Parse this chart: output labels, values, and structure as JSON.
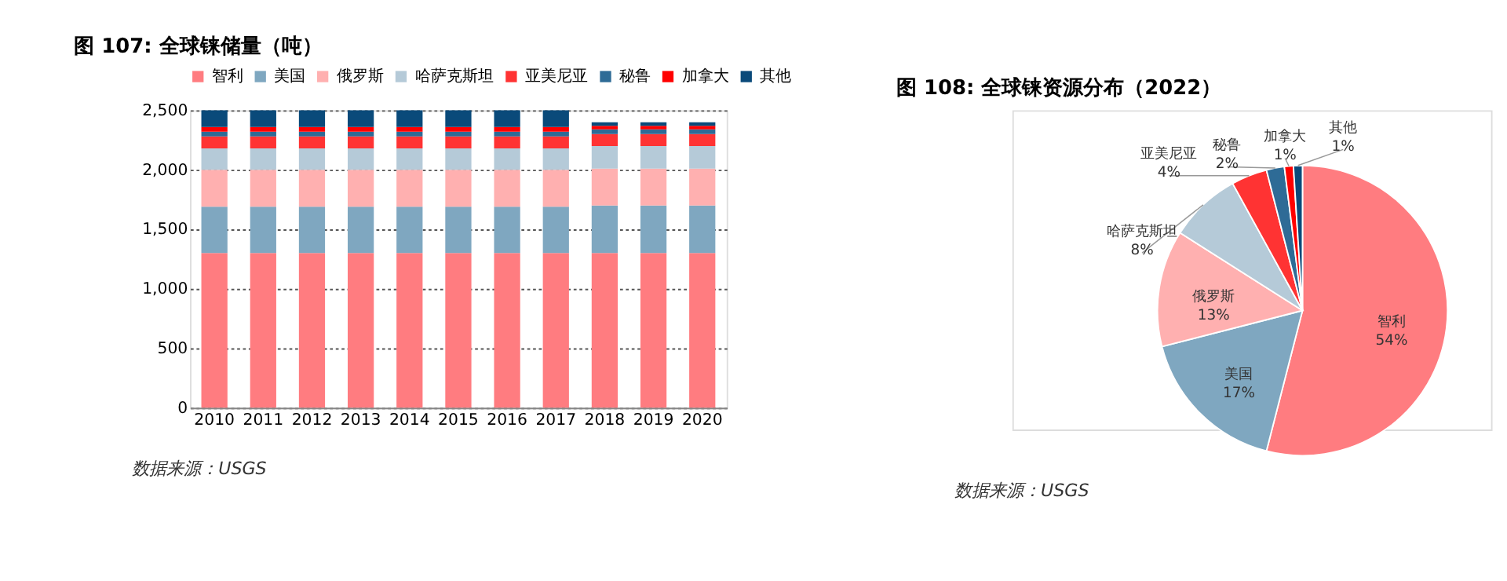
{
  "chart_data": [
    {
      "type": "bar",
      "title": "图 107: 全球铼储量（吨）",
      "stacked": true,
      "legend": "top",
      "grid": "y",
      "categories": [
        "2010",
        "2011",
        "2012",
        "2013",
        "2014",
        "2015",
        "2016",
        "2017",
        "2018",
        "2019",
        "2020"
      ],
      "ylim": [
        0,
        2500
      ],
      "yticks": [
        0,
        500,
        {
          "value": 1000,
          "label": "1,000"
        },
        {
          "value": 1500,
          "label": "1,500"
        },
        {
          "value": 2000,
          "label": "2,000"
        },
        {
          "value": 2500,
          "label": "2,500"
        }
      ],
      "series": [
        {
          "name": "智利",
          "color": "#ff7c80",
          "values": [
            1300,
            1300,
            1300,
            1300,
            1300,
            1300,
            1300,
            1300,
            1300,
            1300,
            1300
          ]
        },
        {
          "name": "美国",
          "color": "#7fa7c0",
          "values": [
            390,
            390,
            390,
            390,
            390,
            390,
            390,
            390,
            400,
            400,
            400
          ]
        },
        {
          "name": "俄罗斯",
          "color": "#ffb0b0",
          "values": [
            310,
            310,
            310,
            310,
            310,
            310,
            310,
            310,
            310,
            310,
            310
          ]
        },
        {
          "name": "哈萨克斯坦",
          "color": "#b5cad8",
          "values": [
            180,
            180,
            180,
            180,
            180,
            180,
            180,
            180,
            190,
            190,
            190
          ]
        },
        {
          "name": "亚美尼亚",
          "color": "#ff3333",
          "values": [
            100,
            100,
            100,
            100,
            100,
            100,
            100,
            100,
            100,
            100,
            100
          ]
        },
        {
          "name": "秘鲁",
          "color": "#2e6b96",
          "values": [
            40,
            40,
            40,
            40,
            40,
            40,
            40,
            40,
            40,
            40,
            40
          ]
        },
        {
          "name": "加拿大",
          "color": "#ff0000",
          "values": [
            40,
            40,
            40,
            40,
            40,
            40,
            40,
            40,
            30,
            30,
            30
          ]
        },
        {
          "name": "其他",
          "color": "#0a4a7a",
          "values": [
            140,
            140,
            140,
            140,
            140,
            140,
            140,
            140,
            30,
            30,
            30
          ]
        }
      ],
      "annotations": [
        "数据来源：USGS"
      ]
    },
    {
      "type": "pie",
      "title": "图 108: 全球铼资源分布（2022）",
      "categories": [
        "智利",
        "美国",
        "俄罗斯",
        "哈萨克斯坦",
        "亚美尼亚",
        "秘鲁",
        "加拿大",
        "其他"
      ],
      "values": [
        54,
        17,
        13,
        8,
        4,
        2,
        1,
        1
      ],
      "value_labels": [
        "54%",
        "17%",
        "13%",
        "8%",
        "4%",
        "2%",
        "1%",
        "1%"
      ],
      "colors": [
        "#ff7c80",
        "#7fa7c0",
        "#ffb0b0",
        "#b5cad8",
        "#ff3333",
        "#2e6b96",
        "#ff0000",
        "#0a4a7a"
      ],
      "annotations": [
        "数据来源：USGS"
      ]
    }
  ]
}
